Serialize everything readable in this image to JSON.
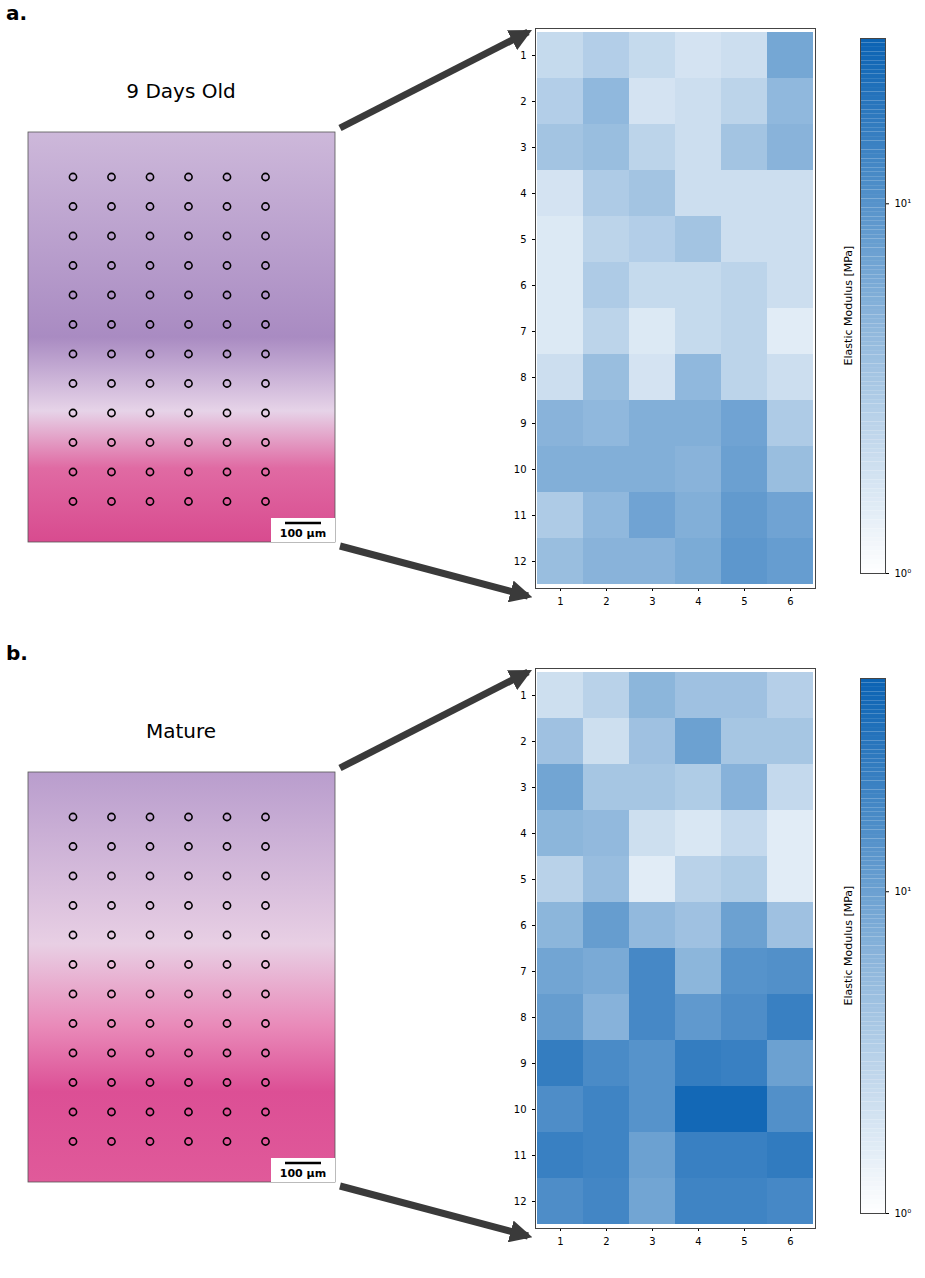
{
  "chart_data": [
    {
      "type": "heatmap",
      "panel_label": "a.",
      "title": "9 Days Old",
      "scale_bar_label": "100 µm",
      "x": [
        1,
        2,
        3,
        4,
        5,
        6
      ],
      "y": [
        1,
        2,
        3,
        4,
        5,
        6,
        7,
        8,
        9,
        10,
        11,
        12
      ],
      "cells": [
        [
          2.2,
          2.8,
          2.2,
          1.8,
          2.0,
          6.5
        ],
        [
          2.8,
          4.5,
          1.8,
          2.0,
          2.5,
          4.5
        ],
        [
          3.5,
          4.0,
          2.5,
          2.0,
          3.5,
          5.0
        ],
        [
          1.8,
          3.0,
          3.5,
          2.0,
          2.0,
          2.0
        ],
        [
          1.6,
          2.5,
          2.8,
          3.5,
          2.0,
          2.0
        ],
        [
          1.6,
          3.0,
          2.2,
          2.2,
          2.5,
          2.0
        ],
        [
          1.6,
          2.5,
          1.6,
          2.2,
          2.5,
          1.5
        ],
        [
          2.0,
          4.0,
          1.8,
          4.5,
          2.5,
          2.0
        ],
        [
          5.0,
          4.5,
          5.5,
          5.5,
          7.0,
          3.0
        ],
        [
          5.5,
          5.5,
          5.5,
          5.0,
          7.5,
          4.0
        ],
        [
          3.0,
          4.5,
          7.0,
          5.5,
          8.5,
          7.0
        ],
        [
          4.0,
          5.0,
          5.0,
          6.0,
          9.0,
          8.0
        ]
      ],
      "colorbar": {
        "label": "Elastic Modulus [MPa]",
        "log": true,
        "range": [
          1,
          28
        ],
        "ticks": [
          {
            "value": 1,
            "label": "10⁰"
          },
          {
            "value": 10,
            "label": "10¹"
          }
        ]
      }
    },
    {
      "type": "heatmap",
      "panel_label": "b.",
      "title": "Mature",
      "scale_bar_label": "100 µm",
      "x": [
        1,
        2,
        3,
        4,
        5,
        6
      ],
      "y": [
        1,
        2,
        3,
        4,
        5,
        6,
        7,
        8,
        9,
        10,
        11,
        12
      ],
      "cells": [
        [
          2.2,
          3.0,
          6.0,
          4.5,
          4.5,
          3.2
        ],
        [
          4.5,
          2.2,
          4.5,
          10,
          4.0,
          4.0
        ],
        [
          9,
          4.0,
          4.0,
          3.5,
          6.5,
          2.5
        ],
        [
          6,
          5.5,
          2.2,
          1.8,
          2.5,
          1.6
        ],
        [
          3,
          5.0,
          1.6,
          3.0,
          3.5,
          1.6
        ],
        [
          6,
          11,
          5.5,
          4.5,
          10,
          4.5
        ],
        [
          9,
          8,
          18,
          6,
          14,
          15
        ],
        [
          11,
          6.5,
          18,
          12,
          16,
          22
        ],
        [
          24,
          17,
          14,
          24,
          22,
          10
        ],
        [
          16,
          20,
          14,
          40,
          40,
          15
        ],
        [
          22,
          20,
          10,
          22,
          22,
          25
        ],
        [
          16,
          19,
          9,
          20,
          20,
          18
        ]
      ],
      "colorbar": {
        "label": "Elastic Modulus [MPa]",
        "log": true,
        "range": [
          1,
          46
        ],
        "ticks": [
          {
            "value": 1,
            "label": "10⁰"
          },
          {
            "value": 10,
            "label": "10¹"
          }
        ]
      }
    }
  ]
}
